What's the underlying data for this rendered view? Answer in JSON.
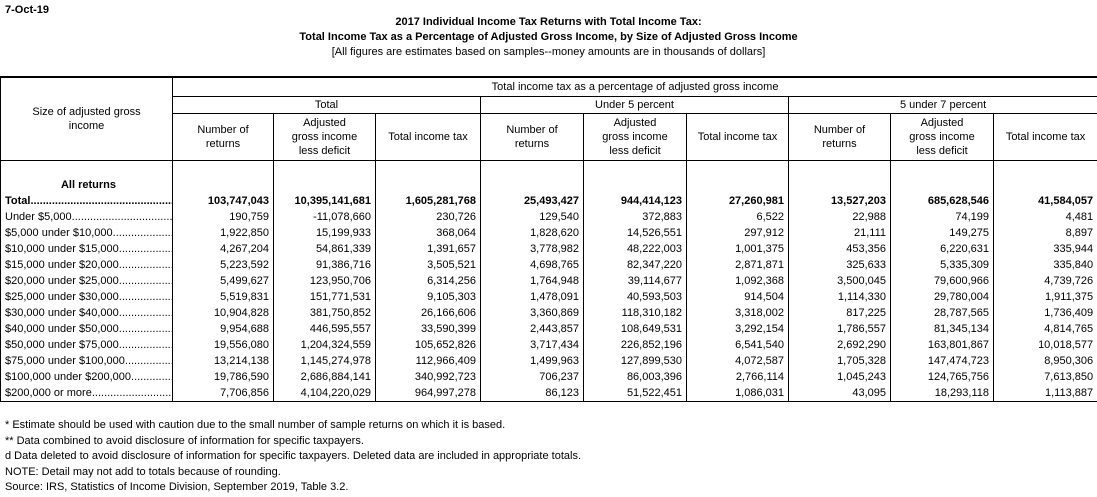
{
  "page": {
    "date": "7-Oct-19"
  },
  "title": {
    "line1": "2017 Individual Income Tax Returns with Total Income Tax:",
    "line2": "Total Income Tax as a Percentage of Adjusted Gross Income, by Size of Adjusted Gross Income",
    "line3": "[All figures are estimates based on samples--money amounts are in thousands of dollars]"
  },
  "table": {
    "stub_header": "Size of adjusted gross\nincome",
    "spanner": "Total income tax as a percentage of adjusted gross income",
    "groups": [
      "Total",
      "Under 5 percent",
      "5 under 7 percent"
    ],
    "sub_headers": [
      "Number of\nreturns",
      "Adjusted\ngross income\nless deficit",
      "Total income tax"
    ],
    "section_header": "All returns",
    "rows": [
      {
        "label": "Total",
        "bold": true,
        "values": [
          "103,747,043",
          "10,395,141,681",
          "1,605,281,768",
          "25,493,427",
          "944,414,123",
          "27,260,981",
          "13,527,203",
          "685,628,546",
          "41,584,057"
        ]
      },
      {
        "label": "Under $5,000",
        "values": [
          "190,759",
          "-11,078,660",
          "230,726",
          "129,540",
          "372,883",
          "6,522",
          "22,988",
          "74,199",
          "4,481"
        ]
      },
      {
        "label": "$5,000 under $10,000",
        "values": [
          "1,922,850",
          "15,199,933",
          "368,064",
          "1,828,620",
          "14,526,551",
          "297,912",
          "21,111",
          "149,275",
          "8,897"
        ]
      },
      {
        "label": "$10,000 under $15,000",
        "values": [
          "4,267,204",
          "54,861,339",
          "1,391,657",
          "3,778,982",
          "48,222,003",
          "1,001,375",
          "453,356",
          "6,220,631",
          "335,944"
        ]
      },
      {
        "label": "$15,000 under $20,000",
        "values": [
          "5,223,592",
          "91,386,716",
          "3,505,521",
          "4,698,765",
          "82,347,220",
          "2,871,871",
          "325,633",
          "5,335,309",
          "335,840"
        ]
      },
      {
        "label": "$20,000 under $25,000",
        "values": [
          "5,499,627",
          "123,950,706",
          "6,314,256",
          "1,764,948",
          "39,114,677",
          "1,092,368",
          "3,500,045",
          "79,600,966",
          "4,739,726"
        ]
      },
      {
        "label": "$25,000 under $30,000",
        "values": [
          "5,519,831",
          "151,771,531",
          "9,105,303",
          "1,478,091",
          "40,593,503",
          "914,504",
          "1,114,330",
          "29,780,004",
          "1,911,375"
        ]
      },
      {
        "label": "$30,000 under $40,000",
        "values": [
          "10,904,828",
          "381,750,852",
          "26,166,606",
          "3,360,869",
          "118,310,182",
          "3,318,002",
          "817,225",
          "28,787,565",
          "1,736,409"
        ]
      },
      {
        "label": "$40,000 under $50,000",
        "values": [
          "9,954,688",
          "446,595,557",
          "33,590,399",
          "2,443,857",
          "108,649,531",
          "3,292,154",
          "1,786,557",
          "81,345,134",
          "4,814,765"
        ]
      },
      {
        "label": "$50,000 under $75,000",
        "values": [
          "19,556,080",
          "1,204,324,559",
          "105,652,826",
          "3,717,434",
          "226,852,196",
          "6,541,540",
          "2,692,290",
          "163,801,867",
          "10,018,577"
        ]
      },
      {
        "label": "$75,000 under $100,000",
        "values": [
          "13,214,138",
          "1,145,274,978",
          "112,966,409",
          "1,499,963",
          "127,899,530",
          "4,072,587",
          "1,705,328",
          "147,474,723",
          "8,950,306"
        ]
      },
      {
        "label": "$100,000 under $200,000",
        "values": [
          "19,786,590",
          "2,686,884,141",
          "340,992,723",
          "706,237",
          "86,003,396",
          "2,766,114",
          "1,045,243",
          "124,765,756",
          "7,613,850"
        ]
      },
      {
        "label": "$200,000 or more",
        "values": [
          "7,706,856",
          "4,104,220,029",
          "964,997,278",
          "86,123",
          "51,522,451",
          "1,086,031",
          "43,095",
          "18,293,118",
          "1,113,887"
        ]
      }
    ]
  },
  "footnotes": [
    "* Estimate should be used with caution due to the small number of sample returns on which it is based.",
    "** Data combined to avoid disclosure of information for specific taxpayers.",
    "d Data deleted to avoid disclosure of information for specific taxpayers.  Deleted data are included in appropriate totals.",
    "NOTE: Detail may not add to totals because of rounding.",
    "Source: IRS, Statistics of Income Division, September 2019, Table 3.2."
  ],
  "colors": {
    "text": "#000000",
    "background": "#ffffff",
    "border": "#000000"
  }
}
